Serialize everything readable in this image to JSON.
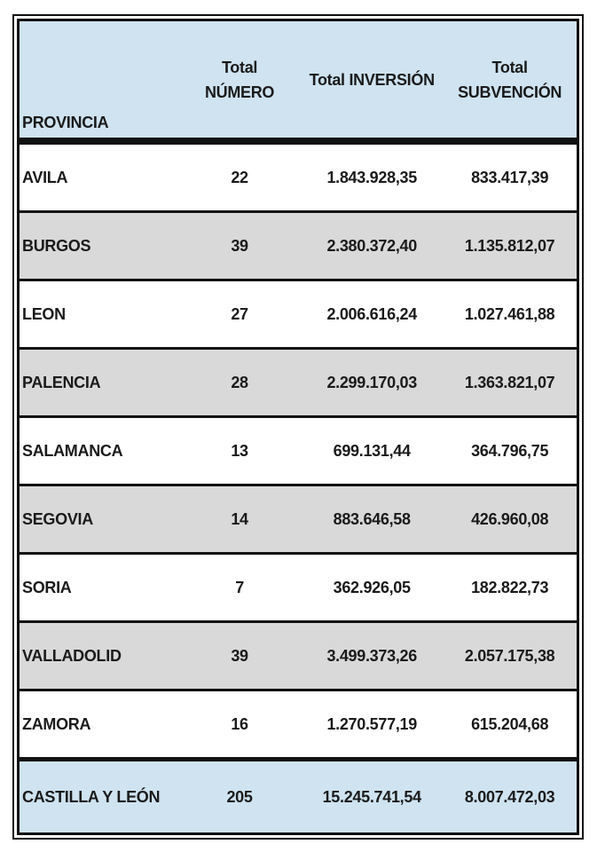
{
  "colors": {
    "header_bg": "#cfe3f0",
    "alt_row_bg": "#d9d9d9",
    "total_row_bg": "#cfe3f0",
    "border": "#111111",
    "text": "#1a1a1a"
  },
  "table": {
    "header": {
      "provincia": "PROVINCIA",
      "numero_line1": "Total",
      "numero_line2": "NÚMERO",
      "inversion": "Total INVERSIÓN",
      "subvencion_line1": "Total",
      "subvencion_line2": "SUBVENCIÓN"
    },
    "rows": [
      {
        "provincia": "AVILA",
        "numero": "22",
        "inversion": "1.843.928,35",
        "subvencion": "833.417,39"
      },
      {
        "provincia": "BURGOS",
        "numero": "39",
        "inversion": "2.380.372,40",
        "subvencion": "1.135.812,07"
      },
      {
        "provincia": "LEON",
        "numero": "27",
        "inversion": "2.006.616,24",
        "subvencion": "1.027.461,88"
      },
      {
        "provincia": "PALENCIA",
        "numero": "28",
        "inversion": "2.299.170,03",
        "subvencion": "1.363.821,07"
      },
      {
        "provincia": "SALAMANCA",
        "numero": "13",
        "inversion": "699.131,44",
        "subvencion": "364.796,75"
      },
      {
        "provincia": "SEGOVIA",
        "numero": "14",
        "inversion": "883.646,58",
        "subvencion": "426.960,08"
      },
      {
        "provincia": "SORIA",
        "numero": "7",
        "inversion": "362.926,05",
        "subvencion": "182.822,73"
      },
      {
        "provincia": "VALLADOLID",
        "numero": "39",
        "inversion": "3.499.373,26",
        "subvencion": "2.057.175,38"
      },
      {
        "provincia": "ZAMORA",
        "numero": "16",
        "inversion": "1.270.577,19",
        "subvencion": "615.204,68"
      }
    ],
    "total_row": {
      "provincia": "CASTILLA Y LEÓN",
      "numero": "205",
      "inversion": "15.245.741,54",
      "subvencion": "8.007.472,03"
    }
  }
}
